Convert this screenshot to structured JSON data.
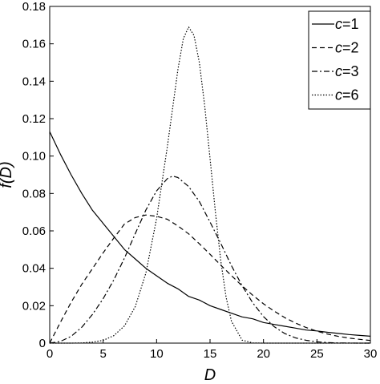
{
  "chart_data": {
    "type": "line",
    "title": "",
    "xlabel": "D",
    "ylabel": "f(D)",
    "xlim": [
      0,
      30
    ],
    "ylim": [
      0,
      0.18
    ],
    "x_ticks": [
      "0",
      "5",
      "10",
      "15",
      "20",
      "25",
      "30"
    ],
    "y_ticks": [
      "0",
      "0.02",
      "0.04",
      "0.06",
      "0.08",
      "0.10",
      "0.12",
      "0.14",
      "0.16",
      "0.18"
    ],
    "grid": false,
    "legend_position": "top-right",
    "series": [
      {
        "name": "c=1",
        "legend_var": "c",
        "legend_val": "=1",
        "style": "solid",
        "x": [
          0,
          1,
          2,
          3,
          4,
          5,
          6,
          7,
          8,
          9,
          10,
          11,
          12,
          13,
          14,
          15,
          16,
          17,
          18,
          19,
          20,
          21,
          22,
          23,
          24,
          25,
          26,
          27,
          28,
          29,
          30
        ],
        "y": [
          0.113,
          0.101,
          0.09,
          0.08,
          0.071,
          0.064,
          0.057,
          0.05,
          0.045,
          0.04,
          0.036,
          0.032,
          0.029,
          0.025,
          0.023,
          0.02,
          0.018,
          0.016,
          0.014,
          0.013,
          0.011,
          0.01,
          0.009,
          0.008,
          0.007,
          0.0065,
          0.0058,
          0.0052,
          0.0046,
          0.0041,
          0.0037
        ]
      },
      {
        "name": "c=2",
        "legend_var": "c",
        "legend_val": "=2",
        "style": "dashed",
        "x": [
          0,
          1,
          2,
          3,
          4,
          5,
          6,
          7,
          8,
          9,
          10,
          11,
          12,
          13,
          14,
          15,
          16,
          17,
          18,
          19,
          20,
          21,
          22,
          23,
          24,
          25,
          26,
          27,
          28,
          29,
          30
        ],
        "y": [
          0,
          0.0111,
          0.0218,
          0.0314,
          0.0398,
          0.0483,
          0.0562,
          0.0637,
          0.0671,
          0.0685,
          0.0678,
          0.0662,
          0.0626,
          0.0584,
          0.0531,
          0.0475,
          0.0417,
          0.0361,
          0.0306,
          0.0256,
          0.021,
          0.0171,
          0.0136,
          0.0107,
          0.0083,
          0.0064,
          0.0048,
          0.0036,
          0.0027,
          0.002,
          0.0014
        ]
      },
      {
        "name": "c=3",
        "legend_var": "c",
        "legend_val": "=3",
        "style": "dashdot",
        "x": [
          0,
          1,
          2,
          3,
          4,
          5,
          6,
          7,
          8,
          9,
          10,
          11,
          11.5,
          12,
          13,
          14,
          15,
          16,
          17,
          18,
          19,
          20,
          21,
          22,
          23,
          24,
          25,
          26,
          27,
          28,
          29,
          30
        ],
        "y": [
          0,
          0.0009,
          0.0036,
          0.0085,
          0.0153,
          0.0238,
          0.0338,
          0.0455,
          0.0585,
          0.0712,
          0.0814,
          0.0879,
          0.0893,
          0.0885,
          0.0837,
          0.0757,
          0.0647,
          0.0534,
          0.0414,
          0.0307,
          0.0215,
          0.0142,
          0.0088,
          0.0051,
          0.0028,
          0.0015,
          0.0007,
          0.0003,
          0.0001,
          5e-05,
          2e-05,
          0
        ]
      },
      {
        "name": "c=6",
        "legend_var": "c",
        "legend_val": "=6",
        "style": "dotted",
        "x": [
          0,
          2,
          3,
          4,
          5,
          6,
          7,
          8,
          9,
          10,
          11,
          12,
          12.5,
          13,
          13.5,
          14,
          14.5,
          15,
          15.5,
          16,
          16.5,
          17,
          18,
          19,
          20,
          21,
          30
        ],
        "y": [
          0,
          0,
          0.0001,
          0.0005,
          0.0015,
          0.004,
          0.0092,
          0.0195,
          0.0375,
          0.0665,
          0.1049,
          0.1465,
          0.1628,
          0.169,
          0.1645,
          0.1499,
          0.127,
          0.0987,
          0.07,
          0.0443,
          0.0246,
          0.0117,
          0.0016,
          0.0001,
          0,
          0,
          0
        ]
      }
    ]
  }
}
